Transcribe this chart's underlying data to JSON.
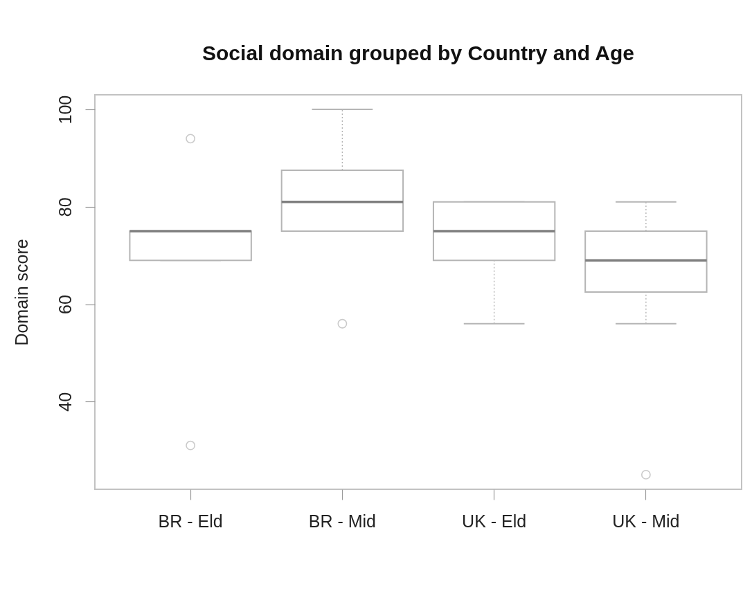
{
  "chart_data": {
    "type": "box",
    "title": "Social domain grouped by Country and Age",
    "ylabel": "Domain score",
    "categories": [
      "BR - Eld",
      "BR - Mid",
      "UK - Eld",
      "UK - Mid"
    ],
    "series": [
      {
        "color": "#b5b5b5",
        "boxes": [
          {
            "low": 69,
            "q1": 69,
            "median": 75,
            "q3": 75,
            "high": 75,
            "outliers": [
              94,
              31
            ]
          },
          {
            "low": 75,
            "q1": 75,
            "median": 81,
            "q3": 87.5,
            "high": 100,
            "outliers": [
              56
            ]
          },
          {
            "low": 56,
            "q1": 69,
            "median": 75,
            "q3": 81,
            "high": 81
          },
          {
            "low": 56,
            "q1": 62.5,
            "median": 69,
            "q3": 75,
            "high": 81,
            "outliers": [
              25
            ]
          }
        ]
      }
    ],
    "ylim": [
      22,
      103
    ],
    "yticks": [
      40,
      60,
      80,
      100
    ],
    "line_style": "dotted"
  }
}
